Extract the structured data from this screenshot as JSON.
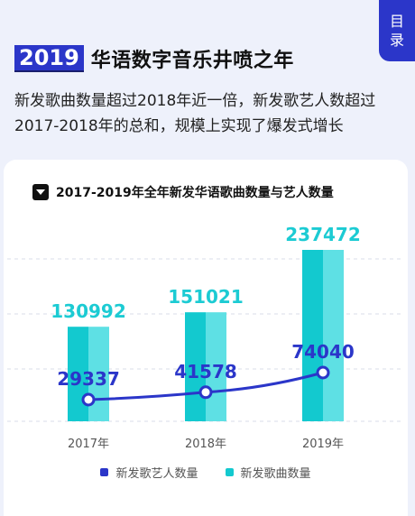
{
  "toc": {
    "label_line1": "目",
    "label_line2": "录"
  },
  "headline": {
    "year": "2019",
    "title": "华语数字音乐井喷之年"
  },
  "summary": {
    "line1": "新发歌曲数量超过2018年近一倍，新发歌艺人数超过",
    "line2": "2017-2018年的总和，规模上实现了爆发式增长"
  },
  "colors": {
    "brand": "#2b36c9",
    "bar_dark": "#13c9cf",
    "bar_light": "#5ee0e4",
    "line": "#2b36c9",
    "bar_label": "#1ccbd3"
  },
  "chart_data": {
    "type": "bar",
    "title": "2017-2019年全年新发华语歌曲数量与艺人数量",
    "categories": [
      "2017年",
      "2018年",
      "2019年"
    ],
    "series": [
      {
        "name": "新发歌曲数量",
        "kind": "bar",
        "values": [
          130992,
          151021,
          237472
        ]
      },
      {
        "name": "新发歌艺人数量",
        "kind": "line",
        "values": [
          29337,
          41578,
          74040
        ]
      }
    ],
    "grid": true,
    "legend_position": "bottom"
  }
}
